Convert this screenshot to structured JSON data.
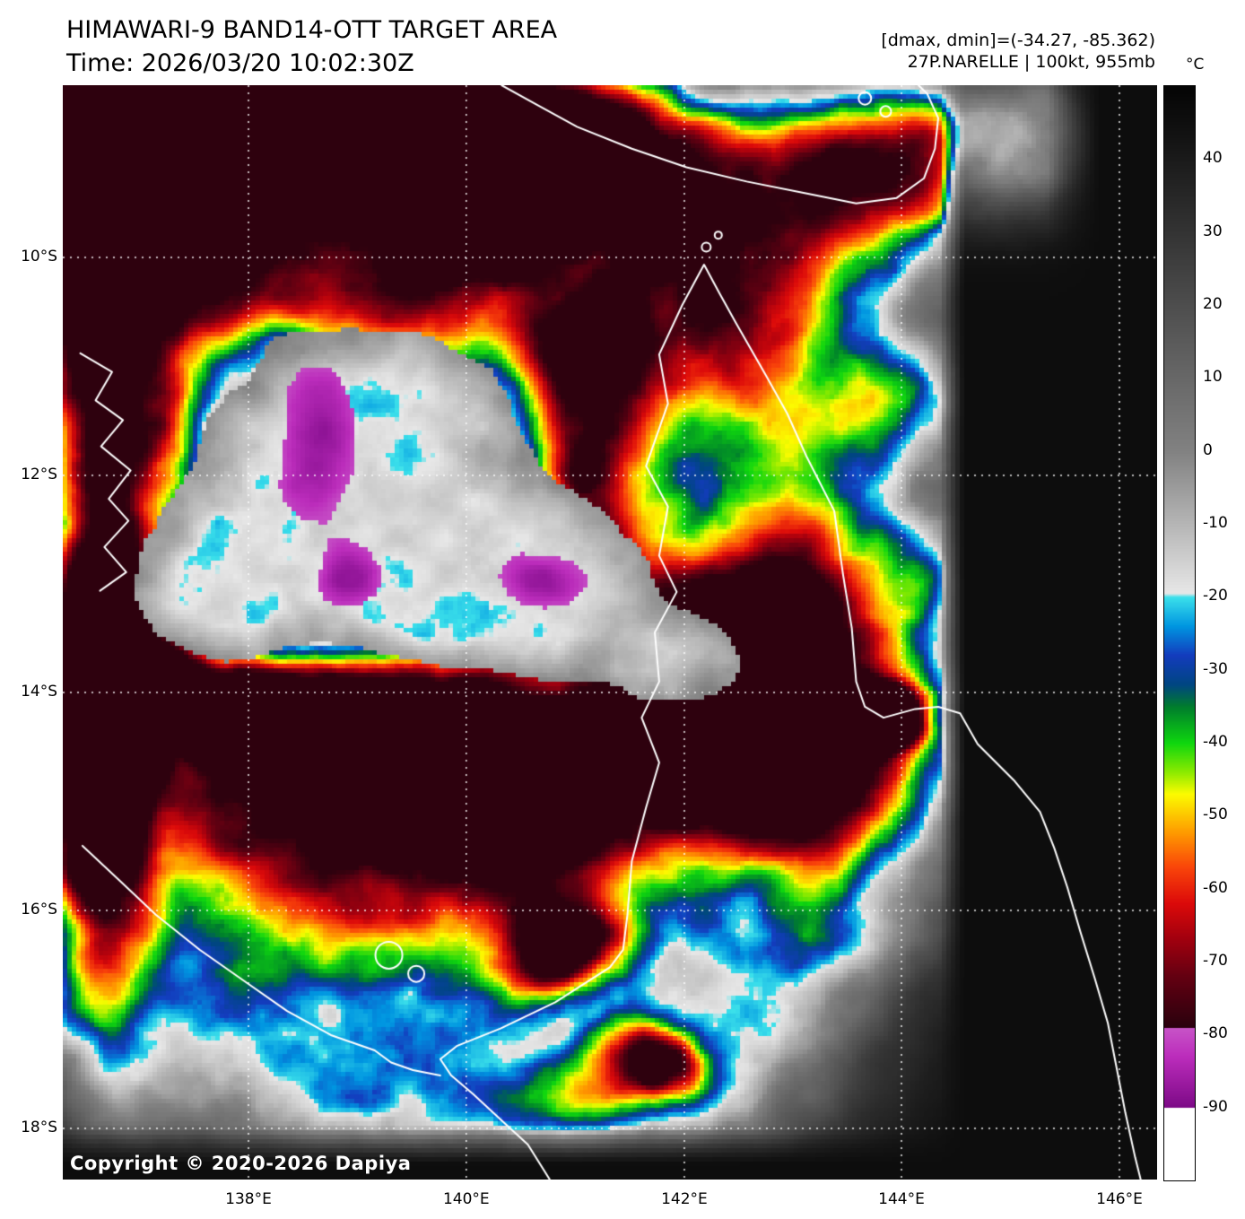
{
  "header": {
    "title": "HIMAWARI-9 BAND14-OTT TARGET AREA",
    "time_line": "Time: 2026/03/20 10:02:30Z",
    "dmax_dmin": "[dmax, dmin]=(-34.27, -85.362)",
    "storm_line": "27P.NARELLE | 100kt, 955mb"
  },
  "map": {
    "lat_ticks": [
      "10°S",
      "12°S",
      "14°S",
      "16°S",
      "18°S"
    ],
    "lon_ticks": [
      "138°E",
      "140°E",
      "142°E",
      "144°E",
      "146°E"
    ],
    "copyright": "Copyright © 2020-2026 Dapiya"
  },
  "colorbar": {
    "unit": "°C",
    "ticks": [
      40,
      30,
      20,
      10,
      0,
      -10,
      -20,
      -30,
      -40,
      -50,
      -60,
      -70,
      -80,
      -90
    ],
    "scale_top_c": 50,
    "scale_bottom_c": -100
  },
  "storm": {
    "id": "27P",
    "name": "NARELLE",
    "intensity_kt": "100kt",
    "pressure_mb": "955mb"
  }
}
